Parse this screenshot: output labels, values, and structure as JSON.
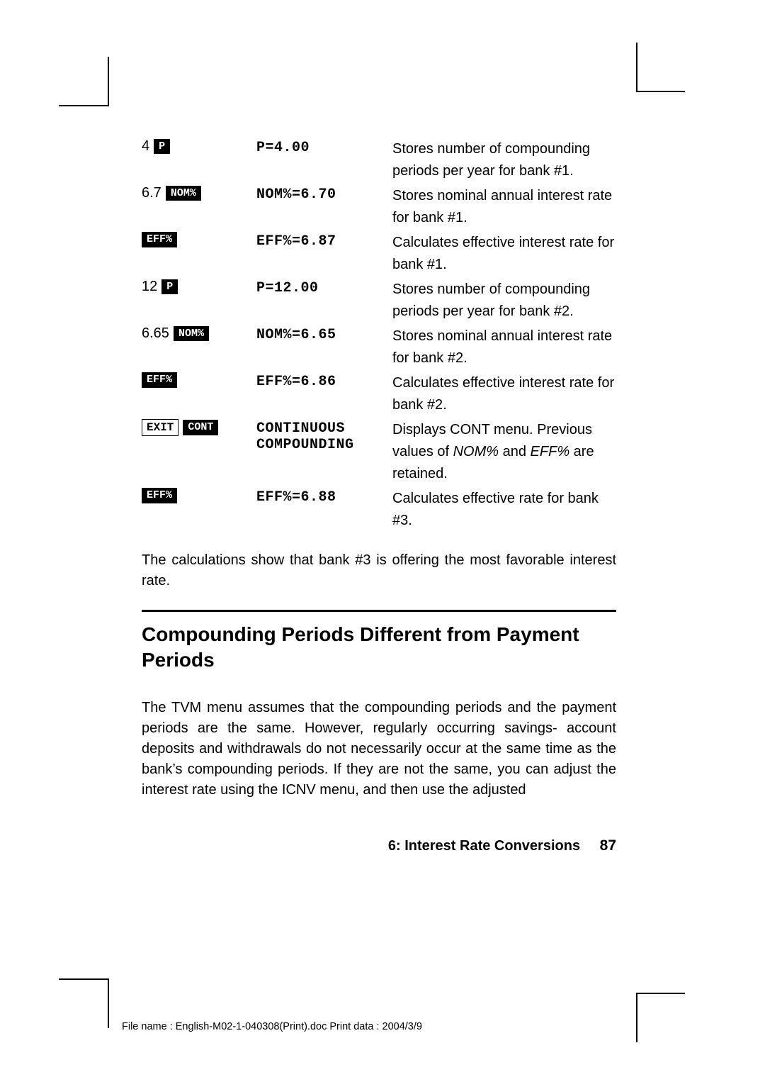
{
  "rows": [
    {
      "keys_num": "4",
      "key_btns": [
        {
          "style": "inv",
          "label": " P  "
        }
      ],
      "display": "P=4.00",
      "desc": "Stores number of compounding periods per year for bank #1."
    },
    {
      "keys_num": "6.7",
      "key_btns": [
        {
          "style": "inv",
          "label": "NOM%"
        }
      ],
      "display": "NOM%=6.70",
      "desc": "Stores nominal annual interest rate for bank #1."
    },
    {
      "keys_num": "",
      "key_btns": [
        {
          "style": "inv",
          "label": "EFF%"
        }
      ],
      "display": "EFF%=6.87",
      "desc": "Calculates effective interest rate for bank #1."
    },
    {
      "keys_num": "12",
      "key_btns": [
        {
          "style": "inv",
          "label": " P  "
        }
      ],
      "display": "P=12.00",
      "desc": "Stores number of compounding periods per year for bank #2."
    },
    {
      "keys_num": "6.65",
      "key_btns": [
        {
          "style": "inv",
          "label": "NOM%"
        }
      ],
      "display": "NOM%=6.65",
      "desc": "Stores nominal annual interest rate for bank #2."
    },
    {
      "keys_num": "",
      "key_btns": [
        {
          "style": "inv",
          "label": "EFF%"
        }
      ],
      "display": "EFF%=6.86",
      "desc": "Calculates effective interest rate for bank #2."
    },
    {
      "keys_num": "",
      "key_btns": [
        {
          "style": "box",
          "label": "EXIT"
        },
        {
          "style": "inv",
          "label": "CONT"
        }
      ],
      "display_lines": [
        "CONTINUOUS",
        "COMPOUNDING"
      ],
      "desc_html": "Displays CONT menu. Previous values of <em>NOM%</em> and <em>EFF%</em> are retained."
    },
    {
      "keys_num": "",
      "key_btns": [
        {
          "style": "inv",
          "label": "EFF%"
        }
      ],
      "display": "EFF%=6.88",
      "desc": "Calculates effective rate for bank #3."
    }
  ],
  "para1": "The calculations show that bank #3 is offering the most favorable interest rate.",
  "heading": "Compounding Periods Different from Payment Periods",
  "para2": "The TVM menu assumes that the compounding periods and the payment periods are the same. However, regularly occurring savings- account deposits and withdrawals do not necessarily occur at the same time as the bank’s compounding periods. If they are not the same, you can adjust the interest rate using the ICNV menu, and then use the adjusted",
  "footer_section": "6: Interest Rate Conversions",
  "footer_page": "87",
  "fileinfo": "File name : English-M02-1-040308(Print).doc    Print data : 2004/3/9"
}
